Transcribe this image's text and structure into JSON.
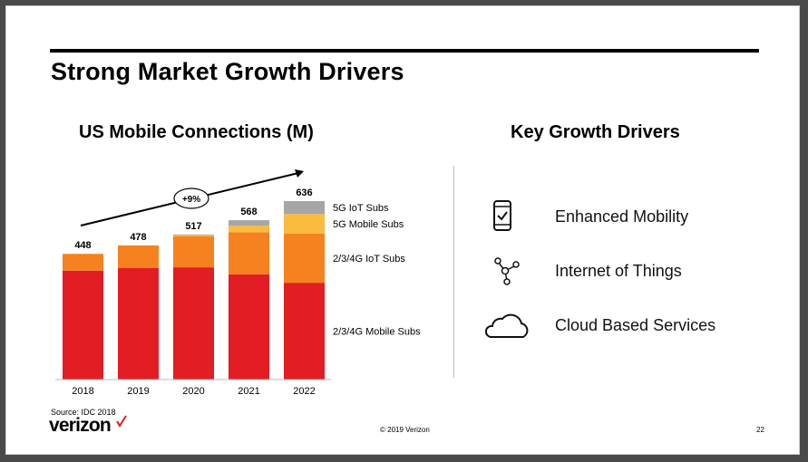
{
  "title": "Strong Market Growth Drivers",
  "chart_data": {
    "type": "bar",
    "stacked": true,
    "title": "US Mobile Connections (M)",
    "categories": [
      "2018",
      "2019",
      "2020",
      "2021",
      "2022"
    ],
    "totals": [
      448,
      478,
      517,
      568,
      636
    ],
    "series": [
      {
        "name": "2/3/4G Mobile Subs",
        "color": "#e31d24",
        "values": [
          388,
          398,
          400,
          375,
          345
        ]
      },
      {
        "name": "2/3/4G IoT Subs",
        "color": "#f5821f",
        "values": [
          60,
          80,
          110,
          150,
          175
        ]
      },
      {
        "name": "5G Mobile Subs",
        "color": "#fbbb3e",
        "values": [
          0,
          0,
          5,
          23,
          70
        ]
      },
      {
        "name": "5G IoT Subs",
        "color": "#a6a6a6",
        "values": [
          0,
          0,
          2,
          20,
          46
        ]
      }
    ],
    "annotation": "+9%",
    "ylim": [
      0,
      700
    ]
  },
  "drivers": {
    "title": "Key Growth Drivers",
    "items": [
      {
        "label": "Enhanced Mobility",
        "icon": "smartphone-check-icon"
      },
      {
        "label": "Internet of Things",
        "icon": "network-nodes-icon"
      },
      {
        "label": "Cloud Based Services",
        "icon": "cloud-icon"
      }
    ]
  },
  "footer": {
    "source": "Source: IDC 2018",
    "logo": "verizon",
    "copyright": "© 2019 Verizon",
    "page": "22"
  },
  "colors": {
    "red": "#e31d24",
    "orange": "#f5821f",
    "yellow": "#fbbb3e",
    "gray": "#a6a6a6"
  }
}
